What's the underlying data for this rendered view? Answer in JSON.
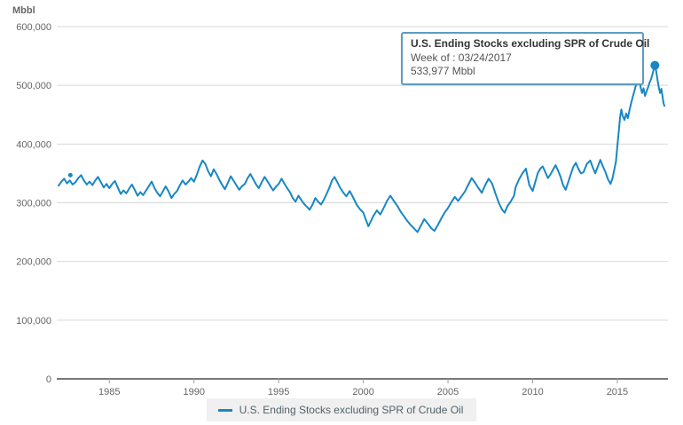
{
  "colors": {
    "line": "#1887c4",
    "grid": "#d8d8d8",
    "axis": "#4d4d4d",
    "tick": "#999999",
    "tick_text": "#666666",
    "tooltip_border": "#5e9cc0",
    "legend_bg": "#f0f0f0"
  },
  "tooltip": {
    "title": "U.S. Ending Stocks excluding SPR of Crude Oil",
    "week_line": "Week of : 03/24/2017",
    "value_line": "533,977 Mbbl"
  },
  "legend": {
    "label": "U.S. Ending Stocks excluding SPR of Crude Oil"
  },
  "chart_data": {
    "type": "line",
    "title": "",
    "ylabel": "Mbbl",
    "xlabel": "",
    "grid": "horizontal",
    "legend_position": "bottom",
    "x_ticks": [
      1985,
      1990,
      1995,
      2000,
      2005,
      2010,
      2015
    ],
    "y_ticks": [
      0,
      100000,
      200000,
      300000,
      400000,
      500000,
      600000
    ],
    "x_range": [
      1982.0,
      2017.78
    ],
    "y_range": [
      0,
      600000
    ],
    "highlight_point": {
      "x": 2017.22,
      "y": 533977
    },
    "isolated_point": {
      "x": 1982.7,
      "y": 347000
    },
    "series": [
      {
        "name": "U.S. Ending Stocks excluding SPR of Crude Oil",
        "color": "#1887c4",
        "points": [
          [
            1982.0,
            329000
          ],
          [
            1982.17,
            336000
          ],
          [
            1982.33,
            341000
          ],
          [
            1982.5,
            333000
          ],
          [
            1982.67,
            338000
          ],
          [
            1982.83,
            331000
          ],
          [
            1983.0,
            335000
          ],
          [
            1983.17,
            342000
          ],
          [
            1983.33,
            347000
          ],
          [
            1983.5,
            338000
          ],
          [
            1983.67,
            331000
          ],
          [
            1983.83,
            336000
          ],
          [
            1984.0,
            330000
          ],
          [
            1984.17,
            338000
          ],
          [
            1984.33,
            344000
          ],
          [
            1984.5,
            335000
          ],
          [
            1984.67,
            326000
          ],
          [
            1984.83,
            332000
          ],
          [
            1985.0,
            325000
          ],
          [
            1985.17,
            332000
          ],
          [
            1985.33,
            337000
          ],
          [
            1985.5,
            326000
          ],
          [
            1985.67,
            315000
          ],
          [
            1985.83,
            321000
          ],
          [
            1986.0,
            316000
          ],
          [
            1986.17,
            324000
          ],
          [
            1986.33,
            331000
          ],
          [
            1986.5,
            322000
          ],
          [
            1986.67,
            312000
          ],
          [
            1986.83,
            318000
          ],
          [
            1987.0,
            313000
          ],
          [
            1987.17,
            321000
          ],
          [
            1987.33,
            328000
          ],
          [
            1987.5,
            336000
          ],
          [
            1987.67,
            325000
          ],
          [
            1987.83,
            317000
          ],
          [
            1988.0,
            311000
          ],
          [
            1988.17,
            320000
          ],
          [
            1988.33,
            328000
          ],
          [
            1988.5,
            319000
          ],
          [
            1988.67,
            308000
          ],
          [
            1988.83,
            315000
          ],
          [
            1989.0,
            320000
          ],
          [
            1989.17,
            330000
          ],
          [
            1989.33,
            338000
          ],
          [
            1989.5,
            331000
          ],
          [
            1989.67,
            336000
          ],
          [
            1989.83,
            342000
          ],
          [
            1990.0,
            336000
          ],
          [
            1990.17,
            348000
          ],
          [
            1990.33,
            361000
          ],
          [
            1990.5,
            372000
          ],
          [
            1990.67,
            366000
          ],
          [
            1990.83,
            354000
          ],
          [
            1991.0,
            345000
          ],
          [
            1991.17,
            357000
          ],
          [
            1991.33,
            349000
          ],
          [
            1991.5,
            339000
          ],
          [
            1991.67,
            330000
          ],
          [
            1991.83,
            323000
          ],
          [
            1992.0,
            334000
          ],
          [
            1992.17,
            345000
          ],
          [
            1992.33,
            338000
          ],
          [
            1992.5,
            330000
          ],
          [
            1992.67,
            322000
          ],
          [
            1992.83,
            328000
          ],
          [
            1993.0,
            332000
          ],
          [
            1993.17,
            342000
          ],
          [
            1993.33,
            349000
          ],
          [
            1993.5,
            340000
          ],
          [
            1993.67,
            331000
          ],
          [
            1993.83,
            325000
          ],
          [
            1994.0,
            335000
          ],
          [
            1994.17,
            344000
          ],
          [
            1994.33,
            337000
          ],
          [
            1994.5,
            329000
          ],
          [
            1994.67,
            321000
          ],
          [
            1994.83,
            327000
          ],
          [
            1995.0,
            332000
          ],
          [
            1995.17,
            341000
          ],
          [
            1995.33,
            333000
          ],
          [
            1995.5,
            325000
          ],
          [
            1995.67,
            318000
          ],
          [
            1995.83,
            308000
          ],
          [
            1996.0,
            302000
          ],
          [
            1996.17,
            312000
          ],
          [
            1996.33,
            305000
          ],
          [
            1996.5,
            298000
          ],
          [
            1996.67,
            293000
          ],
          [
            1996.83,
            288000
          ],
          [
            1997.0,
            297000
          ],
          [
            1997.17,
            308000
          ],
          [
            1997.33,
            302000
          ],
          [
            1997.5,
            297000
          ],
          [
            1997.67,
            305000
          ],
          [
            1997.83,
            315000
          ],
          [
            1998.0,
            326000
          ],
          [
            1998.15,
            338000
          ],
          [
            1998.3,
            344000
          ],
          [
            1998.45,
            336000
          ],
          [
            1998.6,
            327000
          ],
          [
            1998.8,
            318000
          ],
          [
            1999.0,
            311000
          ],
          [
            1999.2,
            320000
          ],
          [
            1999.4,
            309000
          ],
          [
            1999.6,
            297000
          ],
          [
            1999.8,
            289000
          ],
          [
            2000.0,
            283000
          ],
          [
            2000.15,
            271000
          ],
          [
            2000.3,
            260000
          ],
          [
            2000.45,
            269000
          ],
          [
            2000.6,
            278000
          ],
          [
            2000.8,
            287000
          ],
          [
            2001.0,
            280000
          ],
          [
            2001.2,
            291000
          ],
          [
            2001.4,
            303000
          ],
          [
            2001.6,
            312000
          ],
          [
            2001.8,
            303000
          ],
          [
            2002.0,
            295000
          ],
          [
            2002.2,
            285000
          ],
          [
            2002.4,
            277000
          ],
          [
            2002.6,
            269000
          ],
          [
            2002.8,
            262000
          ],
          [
            2003.0,
            256000
          ],
          [
            2003.2,
            250000
          ],
          [
            2003.4,
            261000
          ],
          [
            2003.6,
            272000
          ],
          [
            2003.8,
            265000
          ],
          [
            2004.0,
            257000
          ],
          [
            2004.2,
            252000
          ],
          [
            2004.4,
            262000
          ],
          [
            2004.6,
            273000
          ],
          [
            2004.8,
            283000
          ],
          [
            2005.0,
            291000
          ],
          [
            2005.2,
            301000
          ],
          [
            2005.4,
            310000
          ],
          [
            2005.6,
            303000
          ],
          [
            2005.8,
            311000
          ],
          [
            2006.0,
            319000
          ],
          [
            2006.2,
            331000
          ],
          [
            2006.4,
            342000
          ],
          [
            2006.6,
            334000
          ],
          [
            2006.8,
            325000
          ],
          [
            2007.0,
            317000
          ],
          [
            2007.2,
            330000
          ],
          [
            2007.4,
            341000
          ],
          [
            2007.6,
            333000
          ],
          [
            2007.8,
            316000
          ],
          [
            2008.0,
            300000
          ],
          [
            2008.2,
            288000
          ],
          [
            2008.35,
            283000
          ],
          [
            2008.5,
            294000
          ],
          [
            2008.7,
            302000
          ],
          [
            2008.9,
            312000
          ],
          [
            2009.0,
            327000
          ],
          [
            2009.2,
            340000
          ],
          [
            2009.4,
            350000
          ],
          [
            2009.6,
            358000
          ],
          [
            2009.8,
            330000
          ],
          [
            2010.0,
            320000
          ],
          [
            2010.15,
            335000
          ],
          [
            2010.3,
            350000
          ],
          [
            2010.45,
            358000
          ],
          [
            2010.6,
            362000
          ],
          [
            2010.75,
            352000
          ],
          [
            2010.9,
            342000
          ],
          [
            2011.05,
            348000
          ],
          [
            2011.2,
            356000
          ],
          [
            2011.35,
            364000
          ],
          [
            2011.5,
            355000
          ],
          [
            2011.65,
            344000
          ],
          [
            2011.8,
            330000
          ],
          [
            2011.95,
            322000
          ],
          [
            2012.1,
            335000
          ],
          [
            2012.25,
            348000
          ],
          [
            2012.4,
            361000
          ],
          [
            2012.55,
            368000
          ],
          [
            2012.7,
            358000
          ],
          [
            2012.85,
            350000
          ],
          [
            2013.0,
            352000
          ],
          [
            2013.2,
            366000
          ],
          [
            2013.4,
            372000
          ],
          [
            2013.55,
            360000
          ],
          [
            2013.7,
            350000
          ],
          [
            2013.85,
            362000
          ],
          [
            2014.0,
            373000
          ],
          [
            2014.15,
            362000
          ],
          [
            2014.3,
            352000
          ],
          [
            2014.45,
            340000
          ],
          [
            2014.6,
            332000
          ],
          [
            2014.72,
            342000
          ],
          [
            2014.82,
            356000
          ],
          [
            2014.92,
            370000
          ],
          [
            2015.0,
            395000
          ],
          [
            2015.08,
            420000
          ],
          [
            2015.16,
            445000
          ],
          [
            2015.24,
            459000
          ],
          [
            2015.32,
            448000
          ],
          [
            2015.42,
            441000
          ],
          [
            2015.52,
            452000
          ],
          [
            2015.62,
            444000
          ],
          [
            2015.72,
            458000
          ],
          [
            2015.82,
            470000
          ],
          [
            2015.91,
            480000
          ],
          [
            2016.0,
            489000
          ],
          [
            2016.1,
            500000
          ],
          [
            2016.2,
            509000
          ],
          [
            2016.3,
            512000
          ],
          [
            2016.38,
            496000
          ],
          [
            2016.46,
            487000
          ],
          [
            2016.55,
            495000
          ],
          [
            2016.64,
            482000
          ],
          [
            2016.73,
            490000
          ],
          [
            2016.82,
            497000
          ],
          [
            2016.91,
            505000
          ],
          [
            2017.0,
            511000
          ],
          [
            2017.08,
            519000
          ],
          [
            2017.15,
            527000
          ],
          [
            2017.22,
            533977
          ],
          [
            2017.3,
            524000
          ],
          [
            2017.38,
            508000
          ],
          [
            2017.46,
            495000
          ],
          [
            2017.53,
            487000
          ],
          [
            2017.6,
            494000
          ],
          [
            2017.67,
            481000
          ],
          [
            2017.73,
            470000
          ],
          [
            2017.78,
            465000
          ]
        ]
      }
    ]
  }
}
